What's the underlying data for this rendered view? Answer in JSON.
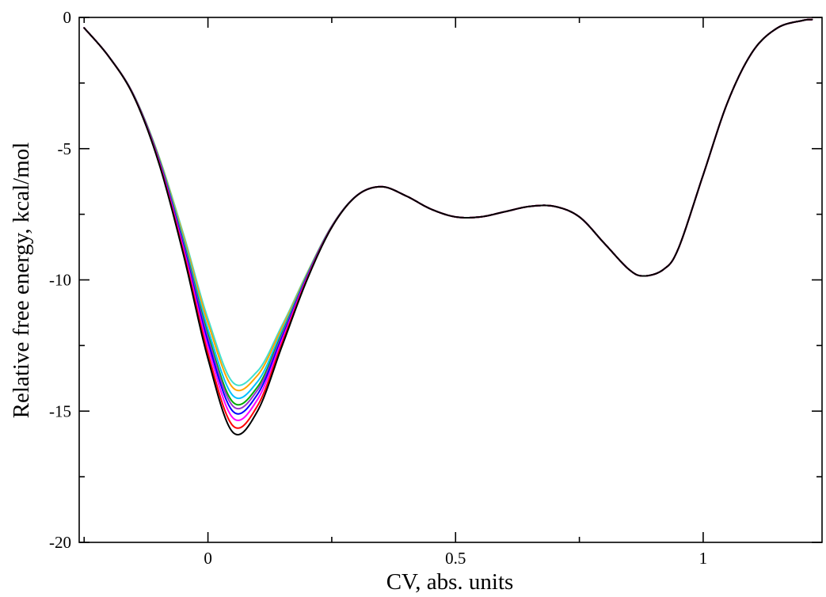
{
  "chart_data": {
    "type": "line",
    "title": "",
    "xlabel": "CV, abs. units",
    "ylabel": "Relative free energy, kcal/mol",
    "xlim": [
      -0.26,
      1.24
    ],
    "ylim": [
      -20,
      0
    ],
    "x_ticks": [
      {
        "value": 0,
        "label": "0"
      },
      {
        "value": 0.5,
        "label": "0.5"
      },
      {
        "value": 1,
        "label": "1"
      }
    ],
    "x_minor_ticks": [
      -0.25,
      0.25,
      0.75
    ],
    "y_ticks": [
      {
        "value": 0,
        "label": "0"
      },
      {
        "value": -5,
        "label": "-5"
      },
      {
        "value": -10,
        "label": "-10"
      },
      {
        "value": -15,
        "label": "-15"
      },
      {
        "value": -20,
        "label": "-20"
      }
    ],
    "y_minor_ticks": [
      -2.5,
      -7.5,
      -12.5,
      -17.5
    ],
    "grid": false,
    "legend": "none",
    "base_curve": {
      "x": [
        -0.25,
        -0.2,
        -0.15,
        -0.1,
        -0.05,
        0.0,
        0.05,
        0.1,
        0.15,
        0.2,
        0.25,
        0.3,
        0.35,
        0.4,
        0.45,
        0.5,
        0.55,
        0.6,
        0.65,
        0.7,
        0.75,
        0.8,
        0.85,
        0.88,
        0.92,
        0.95,
        1.0,
        1.05,
        1.1,
        1.15,
        1.2,
        1.22
      ],
      "y": [
        -0.4,
        -1.5,
        -3.0,
        -5.5,
        -9.0,
        -13.0,
        -15.8,
        -15.0,
        -12.5,
        -10.0,
        -8.0,
        -6.8,
        -6.45,
        -6.8,
        -7.3,
        -7.6,
        -7.6,
        -7.4,
        -7.2,
        -7.2,
        -7.6,
        -8.6,
        -9.6,
        -9.85,
        -9.6,
        -8.8,
        -6.0,
        -3.2,
        -1.3,
        -0.4,
        -0.12,
        -0.08
      ]
    },
    "series": [
      {
        "color": "#000000",
        "min": -15.8
      },
      {
        "color": "#ff0000",
        "min": -15.55
      },
      {
        "color": "#ff00ff",
        "min": -15.25
      },
      {
        "color": "#0000ff",
        "min": -15.0
      },
      {
        "color": "#9932cc",
        "min": -14.8
      },
      {
        "color": "#00aa00",
        "min": -14.65
      },
      {
        "color": "#00bfff",
        "min": -14.4
      },
      {
        "color": "#ffa500",
        "min": -14.1
      },
      {
        "color": "#40e0d0",
        "min": -13.9
      }
    ],
    "min_position": 0.05
  }
}
